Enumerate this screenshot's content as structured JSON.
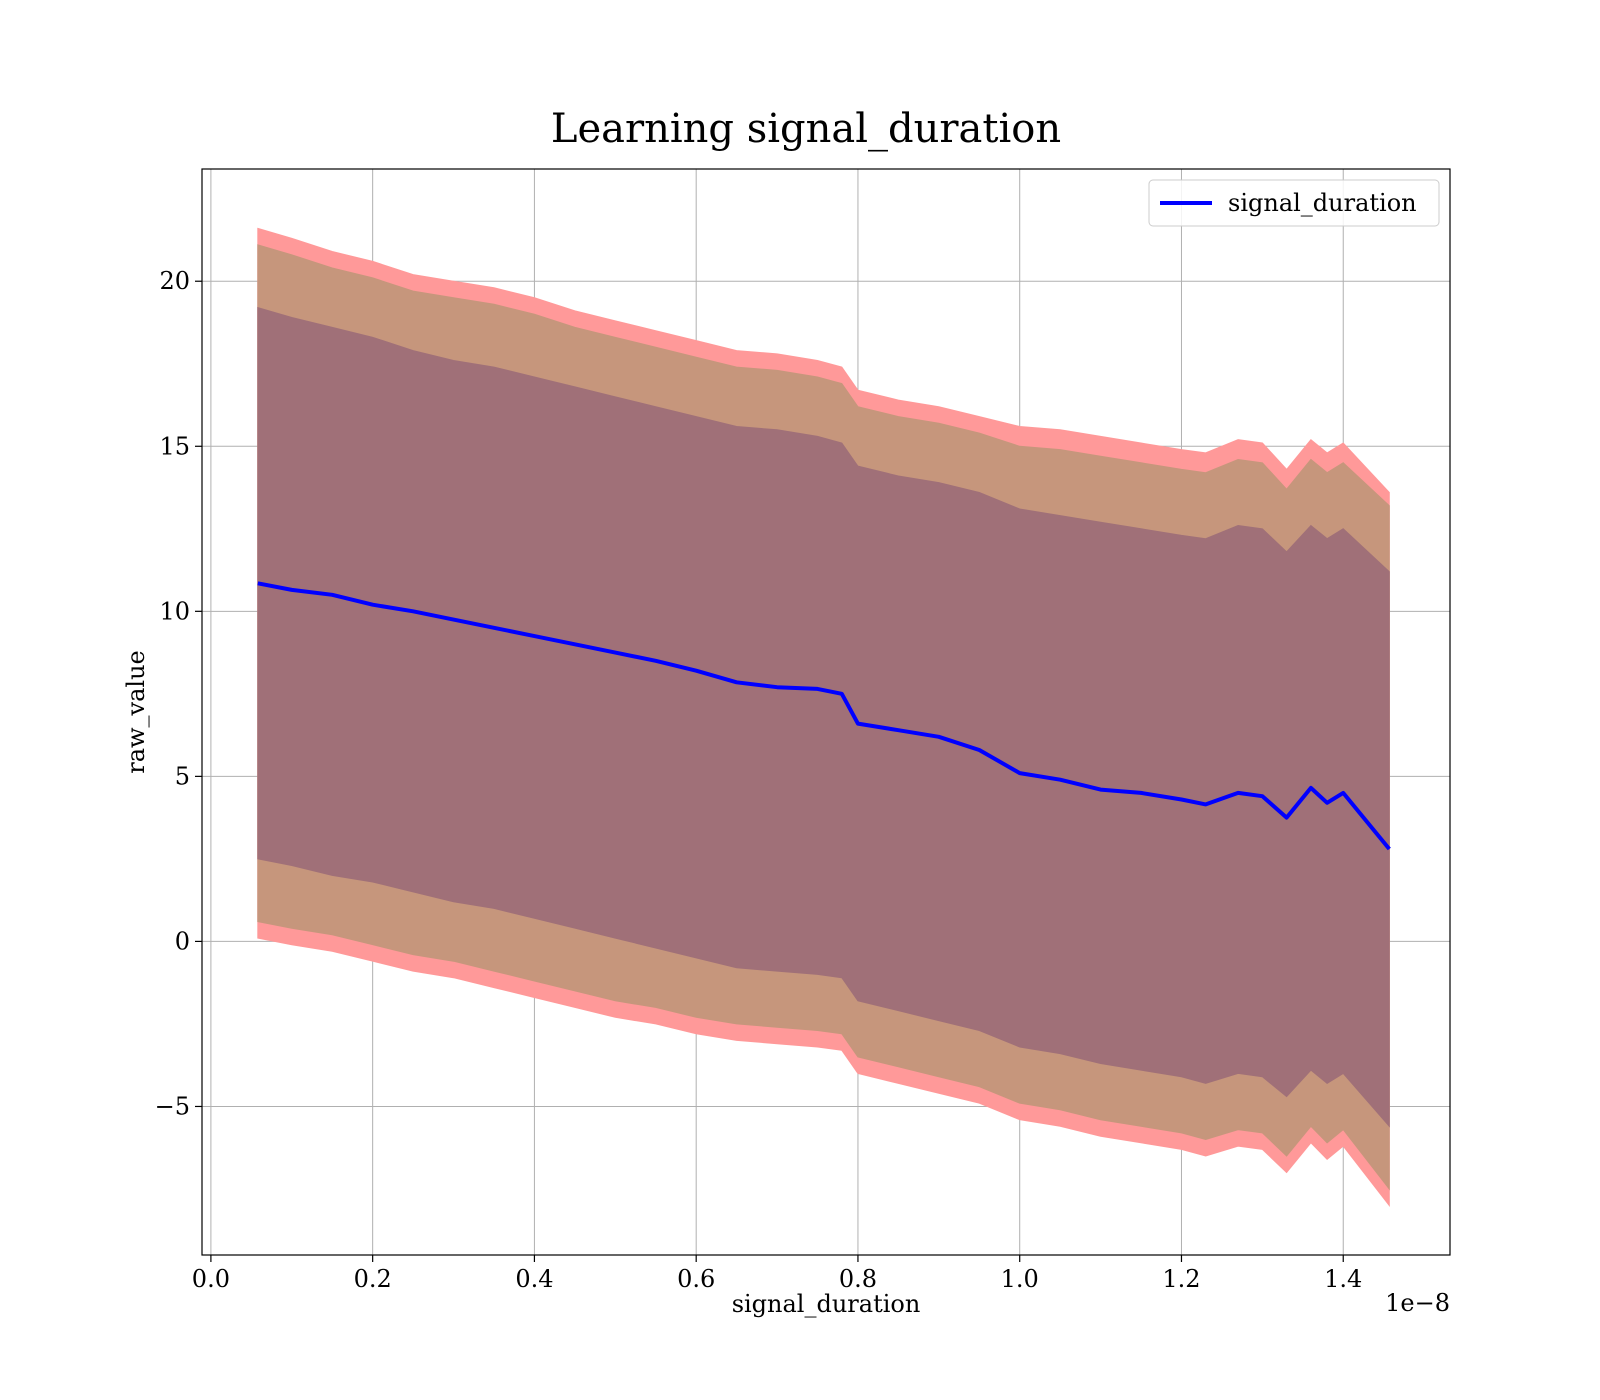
{
  "chart_data": {
    "type": "line",
    "title": "Learning signal_duration",
    "xlabel": "signal_duration",
    "ylabel": "raw_value",
    "x_offset_text": "1e−8",
    "xlim": [
      -0.011,
      1.532
    ],
    "ylim": [
      -9.5,
      23.4
    ],
    "xticks": [
      0.0,
      0.2,
      0.4,
      0.6,
      0.8,
      1.0,
      1.2,
      1.4
    ],
    "xtick_labels": [
      "0.0",
      "0.2",
      "0.4",
      "0.6",
      "0.8",
      "1.0",
      "1.2",
      "1.4"
    ],
    "yticks": [
      -5,
      0,
      5,
      10,
      15,
      20
    ],
    "ytick_labels": [
      "−5",
      "0",
      "5",
      "10",
      "15",
      "20"
    ],
    "grid": true,
    "legend_position": "top-right",
    "colors": {
      "line": "#0000ff",
      "band_outer": "#ff9999",
      "band_middle": "#c6967c",
      "band_inner": "#a07078"
    },
    "x": [
      0.058,
      0.1,
      0.15,
      0.2,
      0.25,
      0.3,
      0.35,
      0.4,
      0.45,
      0.5,
      0.55,
      0.6,
      0.65,
      0.7,
      0.75,
      0.78,
      0.8,
      0.85,
      0.9,
      0.95,
      1.0,
      1.05,
      1.1,
      1.15,
      1.2,
      1.23,
      1.27,
      1.3,
      1.33,
      1.36,
      1.38,
      1.4,
      1.457
    ],
    "series": [
      {
        "name": "signal_duration",
        "values": [
          10.85,
          10.65,
          10.5,
          10.2,
          10.0,
          9.75,
          9.5,
          9.25,
          9.0,
          8.75,
          8.5,
          8.2,
          7.85,
          7.7,
          7.65,
          7.5,
          6.6,
          6.4,
          6.2,
          5.8,
          5.1,
          4.9,
          4.6,
          4.5,
          4.3,
          4.15,
          4.5,
          4.4,
          3.75,
          4.65,
          4.2,
          4.5,
          2.8
        ]
      }
    ],
    "bands": [
      {
        "name": "outer",
        "upper": [
          21.6,
          21.3,
          20.9,
          20.6,
          20.2,
          20.0,
          19.8,
          19.5,
          19.1,
          18.8,
          18.5,
          18.2,
          17.9,
          17.8,
          17.6,
          17.4,
          16.7,
          16.4,
          16.2,
          15.9,
          15.6,
          15.5,
          15.3,
          15.1,
          14.9,
          14.8,
          15.2,
          15.1,
          14.3,
          15.2,
          14.8,
          15.1,
          13.6
        ],
        "lower": [
          0.1,
          -0.1,
          -0.3,
          -0.6,
          -0.9,
          -1.1,
          -1.4,
          -1.7,
          -2.0,
          -2.3,
          -2.5,
          -2.8,
          -3.0,
          -3.1,
          -3.2,
          -3.3,
          -4.0,
          -4.3,
          -4.6,
          -4.9,
          -5.4,
          -5.6,
          -5.9,
          -6.1,
          -6.3,
          -6.5,
          -6.2,
          -6.3,
          -7.0,
          -6.1,
          -6.6,
          -6.2,
          -8.0
        ]
      },
      {
        "name": "middle",
        "upper": [
          21.1,
          20.8,
          20.4,
          20.1,
          19.7,
          19.5,
          19.3,
          19.0,
          18.6,
          18.3,
          18.0,
          17.7,
          17.4,
          17.3,
          17.1,
          16.9,
          16.2,
          15.9,
          15.7,
          15.4,
          15.0,
          14.9,
          14.7,
          14.5,
          14.3,
          14.2,
          14.6,
          14.5,
          13.7,
          14.6,
          14.2,
          14.5,
          13.2
        ],
        "lower": [
          0.6,
          0.4,
          0.2,
          -0.1,
          -0.4,
          -0.6,
          -0.9,
          -1.2,
          -1.5,
          -1.8,
          -2.0,
          -2.3,
          -2.5,
          -2.6,
          -2.7,
          -2.8,
          -3.5,
          -3.8,
          -4.1,
          -4.4,
          -4.9,
          -5.1,
          -5.4,
          -5.6,
          -5.8,
          -6.0,
          -5.7,
          -5.8,
          -6.5,
          -5.6,
          -6.1,
          -5.7,
          -7.5
        ]
      },
      {
        "name": "inner",
        "upper": [
          19.2,
          18.9,
          18.6,
          18.3,
          17.9,
          17.6,
          17.4,
          17.1,
          16.8,
          16.5,
          16.2,
          15.9,
          15.6,
          15.5,
          15.3,
          15.1,
          14.4,
          14.1,
          13.9,
          13.6,
          13.1,
          12.9,
          12.7,
          12.5,
          12.3,
          12.2,
          12.6,
          12.5,
          11.8,
          12.6,
          12.2,
          12.5,
          11.2
        ],
        "lower": [
          2.5,
          2.3,
          2.0,
          1.8,
          1.5,
          1.2,
          1.0,
          0.7,
          0.4,
          0.1,
          -0.2,
          -0.5,
          -0.8,
          -0.9,
          -1.0,
          -1.1,
          -1.8,
          -2.1,
          -2.4,
          -2.7,
          -3.2,
          -3.4,
          -3.7,
          -3.9,
          -4.1,
          -4.3,
          -4.0,
          -4.1,
          -4.7,
          -3.9,
          -4.3,
          -4.0,
          -5.6
        ]
      }
    ]
  }
}
